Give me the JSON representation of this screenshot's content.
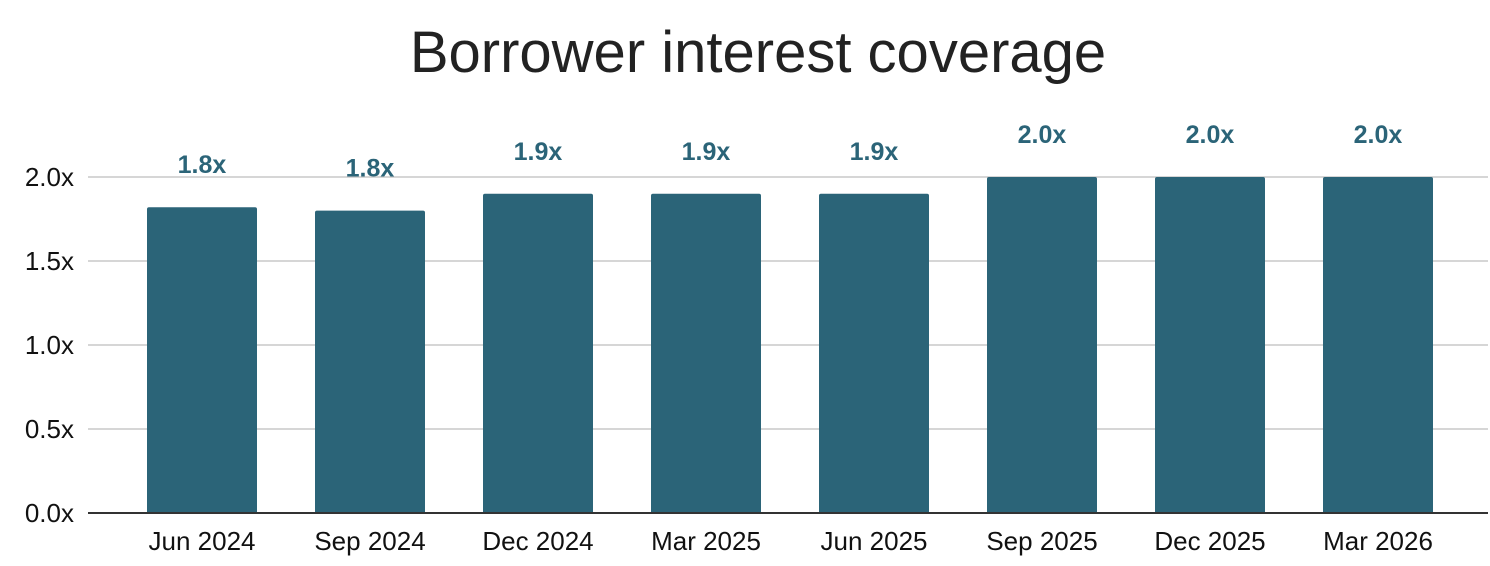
{
  "chart_data": {
    "type": "bar",
    "title": "Borrower interest coverage",
    "categories": [
      "Jun 2024",
      "Sep 2024",
      "Dec 2024",
      "Mar 2025",
      "Jun 2025",
      "Sep 2025",
      "Dec 2025",
      "Mar 2026"
    ],
    "values": [
      1.82,
      1.8,
      1.9,
      1.9,
      1.9,
      2.0,
      2.0,
      2.0
    ],
    "data_labels": [
      "1.8x",
      "1.8x",
      "1.9x",
      "1.9x",
      "1.9x",
      "2.0x",
      "2.0x",
      "2.0x"
    ],
    "yticks": [
      "0.0x",
      "0.5x",
      "1.0x",
      "1.5x",
      "2.0x"
    ],
    "ylim": [
      0,
      2.0
    ],
    "xlabel": "",
    "ylabel": "",
    "grid": true,
    "legend": "none",
    "colors": {
      "bar": "#2b6478",
      "data_label": "#2b6478",
      "grid": "#c8c8c8",
      "axis": "#333333"
    }
  }
}
